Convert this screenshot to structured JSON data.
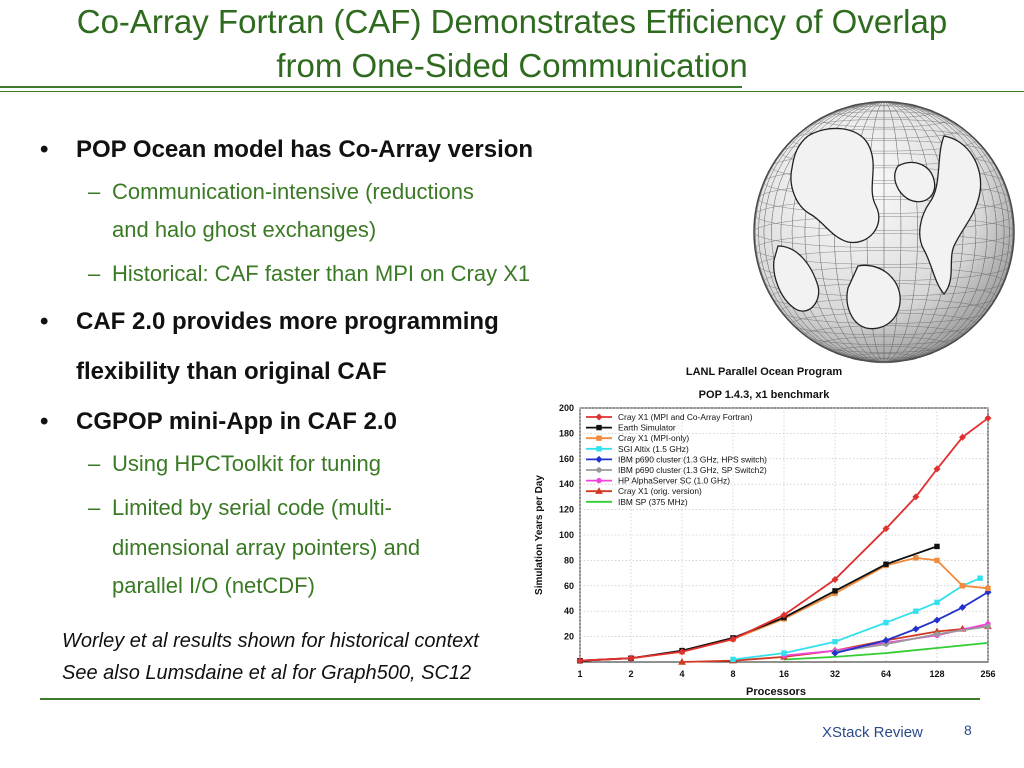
{
  "slide": {
    "title_line1": "Co-Array Fortran (CAF) Demonstrates Efficiency of Overlap",
    "title_line2": "from One-Sided Communication",
    "bullets": [
      {
        "level": 1,
        "text": "POP Ocean model has Co-Array version"
      },
      {
        "level": 2,
        "text": "Communication-intensive (reductions"
      },
      {
        "level": 2,
        "text": "and halo ghost exchanges)",
        "continuation": true
      },
      {
        "level": 2,
        "text": "Historical: CAF faster than MPI on Cray X1"
      },
      {
        "level": 1,
        "text": "CAF 2.0 provides more programming"
      },
      {
        "level": 1,
        "text": "flexibility than original CAF",
        "continuation": true
      },
      {
        "level": 1,
        "text": "CGPOP mini-App in CAF 2.0"
      },
      {
        "level": 2,
        "text": "Using HPCToolkit for tuning"
      },
      {
        "level": 2,
        "text": "Limited by serial code (multi-"
      },
      {
        "level": 2,
        "text": "dimensional array pointers) and",
        "continuation": true
      },
      {
        "level": 2,
        "text": "parallel I/O (netCDF)",
        "continuation": true
      }
    ],
    "bullet_glyph": "•",
    "dash_glyph": "–",
    "notes": [
      "Worley et al results shown for historical context",
      "See also Lumsdaine et al for Graph500, SC12"
    ],
    "footer_label": "XStack Review",
    "page_number": "8",
    "accent_color": "#2e6b1f"
  },
  "chart_data": {
    "type": "line",
    "title": "LANL Parallel Ocean Program",
    "subtitle": "POP 1.4.3, x1 benchmark",
    "xlabel": "Processors",
    "ylabel": "Simulation Years per Day",
    "x_scale": "log2",
    "x_ticks": [
      1,
      2,
      4,
      8,
      16,
      32,
      64,
      128,
      256
    ],
    "ylim": [
      0,
      200
    ],
    "y_ticks": [
      20,
      40,
      60,
      80,
      100,
      120,
      140,
      160,
      180,
      200
    ],
    "grid": true,
    "legend_position": "top-left",
    "series": [
      {
        "name": "Cray X1 (MPI and Co-Array Fortran)",
        "color": "#e03030",
        "marker": "diamond",
        "points": [
          [
            1,
            1
          ],
          [
            2,
            3
          ],
          [
            4,
            8
          ],
          [
            8,
            18
          ],
          [
            16,
            37
          ],
          [
            32,
            65
          ],
          [
            64,
            105
          ],
          [
            96,
            130
          ],
          [
            128,
            152
          ],
          [
            181,
            177
          ],
          [
            256,
            192
          ]
        ]
      },
      {
        "name": "Earth Simulator",
        "color": "#111111",
        "marker": "square",
        "points": [
          [
            1,
            1
          ],
          [
            2,
            3
          ],
          [
            4,
            9
          ],
          [
            8,
            19
          ],
          [
            16,
            35
          ],
          [
            32,
            56
          ],
          [
            64,
            77
          ],
          [
            128,
            91
          ]
        ]
      },
      {
        "name": "Cray X1 (MPI-only)",
        "color": "#f08a3c",
        "marker": "square",
        "points": [
          [
            1,
            1
          ],
          [
            2,
            3
          ],
          [
            4,
            8
          ],
          [
            8,
            18
          ],
          [
            16,
            34
          ],
          [
            32,
            54
          ],
          [
            64,
            76
          ],
          [
            96,
            82
          ],
          [
            128,
            80
          ],
          [
            181,
            60
          ],
          [
            256,
            58
          ]
        ]
      },
      {
        "name": "SGI Altix (1.5 GHz)",
        "color": "#33e0ee",
        "marker": "square",
        "points": [
          [
            8,
            2
          ],
          [
            16,
            7
          ],
          [
            32,
            16
          ],
          [
            64,
            31
          ],
          [
            96,
            40
          ],
          [
            128,
            47
          ],
          [
            181,
            60
          ],
          [
            230,
            66
          ]
        ]
      },
      {
        "name": "IBM p690 cluster (1.3 GHz, HPS switch)",
        "color": "#2233cc",
        "marker": "diamond",
        "points": [
          [
            32,
            7
          ],
          [
            64,
            17
          ],
          [
            96,
            26
          ],
          [
            128,
            33
          ],
          [
            181,
            43
          ],
          [
            256,
            55
          ]
        ]
      },
      {
        "name": "IBM p690 cluster (1.3 GHz, SP Switch2)",
        "color": "#999999",
        "marker": "circle",
        "points": [
          [
            32,
            8
          ],
          [
            64,
            14
          ],
          [
            128,
            22
          ],
          [
            256,
            28
          ]
        ]
      },
      {
        "name": "HP AlphaServer SC (1.0 GHz)",
        "color": "#ee44dd",
        "marker": "circle",
        "points": [
          [
            16,
            5
          ],
          [
            32,
            9
          ],
          [
            64,
            15
          ],
          [
            128,
            21
          ],
          [
            256,
            30
          ]
        ]
      },
      {
        "name": "Cray X1 (orig. version)",
        "color": "#d03a20",
        "marker": "triangle",
        "points": [
          [
            4,
            0
          ],
          [
            8,
            1
          ],
          [
            16,
            4
          ],
          [
            32,
            9
          ],
          [
            64,
            17
          ],
          [
            128,
            24
          ],
          [
            181,
            26
          ],
          [
            256,
            28
          ]
        ]
      },
      {
        "name": "IBM SP (375 MHz)",
        "color": "#33cc33",
        "marker": "none",
        "points": [
          [
            16,
            2
          ],
          [
            32,
            4
          ],
          [
            64,
            7
          ],
          [
            128,
            11
          ],
          [
            256,
            15
          ]
        ]
      }
    ]
  }
}
